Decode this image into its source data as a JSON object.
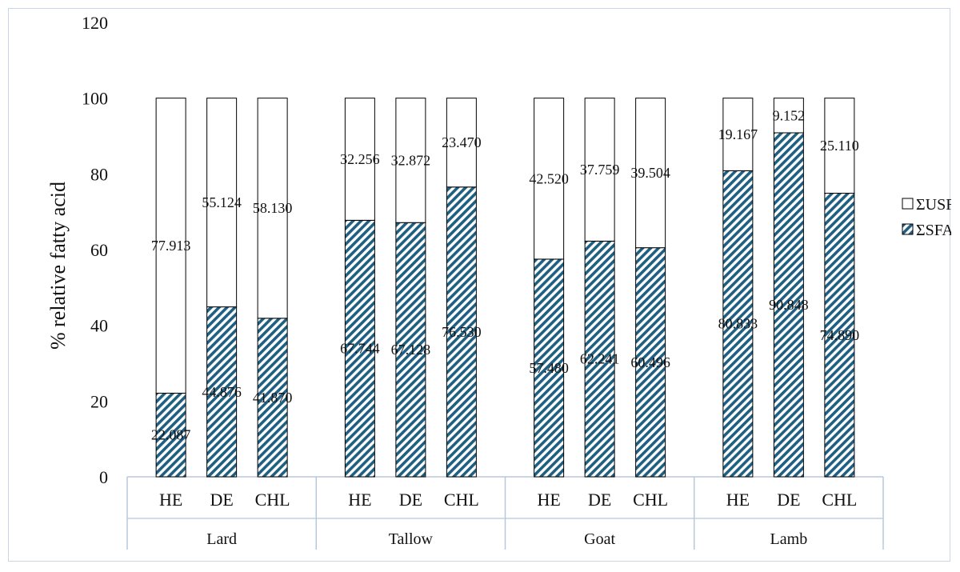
{
  "chart_data": {
    "type": "bar",
    "stacked": true,
    "ylabel": "% relative fatty acid",
    "xlabel": "",
    "ylim": [
      0,
      120
    ],
    "yticks": [
      "0",
      "20",
      "40",
      "60",
      "80",
      "100",
      "120"
    ],
    "grid": false,
    "legend_position": "right",
    "groups": [
      {
        "name": "Lard",
        "categories": [
          "HE",
          "DE",
          "CHL"
        ]
      },
      {
        "name": "Tallow",
        "categories": [
          "HE",
          "DE",
          "CHL"
        ]
      },
      {
        "name": "Goat",
        "categories": [
          "HE",
          "DE",
          "CHL"
        ]
      },
      {
        "name": "Lamb",
        "categories": [
          "HE",
          "DE",
          "CHL"
        ]
      }
    ],
    "series": [
      {
        "name": "ΣSFA",
        "pattern": "diagonal-hatch",
        "values": [
          22.087,
          44.876,
          41.87,
          67.744,
          67.128,
          76.53,
          57.48,
          62.241,
          60.496,
          80.833,
          90.848,
          74.89
        ],
        "labels": [
          "22.087",
          "44.876",
          "41.870",
          "67.744",
          "67.128",
          "76.530",
          "57.480",
          "62.241",
          "60.496",
          "80.833",
          "90.848",
          "74.890"
        ]
      },
      {
        "name": "ΣUSFA",
        "pattern": "none",
        "values": [
          77.913,
          55.124,
          58.13,
          32.256,
          32.872,
          23.47,
          42.52,
          37.759,
          39.504,
          19.167,
          9.152,
          25.11
        ],
        "labels": [
          "77.913",
          "55.124",
          "58.130",
          "32.256",
          "32.872",
          "23.470",
          "42.520",
          "37.759",
          "39.504",
          "19.167",
          "9.152",
          "25.110"
        ]
      }
    ],
    "colors": {
      "hatch": "#1f5f82",
      "bar_outline": "#000000",
      "axis": "#b8c8dc"
    }
  }
}
